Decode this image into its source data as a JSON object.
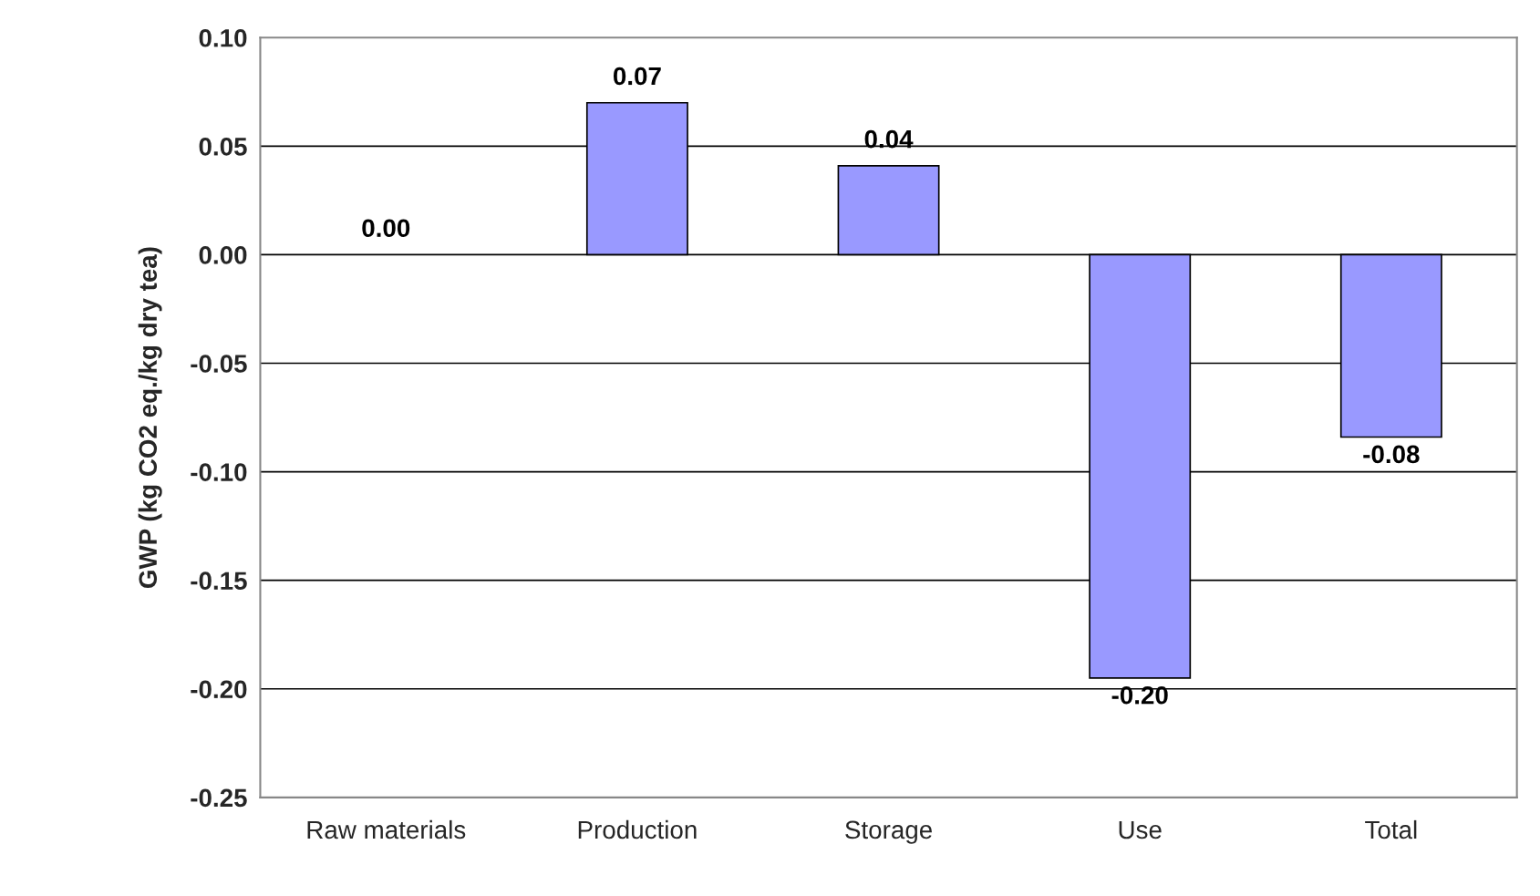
{
  "chart_data": {
    "type": "bar",
    "ylabel": "GWP (kg CO2 eq./kg dry tea)",
    "categories": [
      "Raw materials",
      "Production",
      "Storage",
      "Use",
      "Total"
    ],
    "values": [
      0.0,
      0.07,
      0.041,
      -0.195,
      -0.084
    ],
    "value_labels": [
      "0.00",
      "0.07",
      "0.04",
      "-0.20",
      "-0.08"
    ],
    "color": "#9999ff",
    "ylim": [
      -0.25,
      0.1
    ],
    "yticks": [
      {
        "value": -0.25,
        "label": "-0.25"
      },
      {
        "value": -0.2,
        "label": "-0.20"
      },
      {
        "value": -0.15,
        "label": "-0.15"
      },
      {
        "value": -0.1,
        "label": "-0.10"
      },
      {
        "value": -0.05,
        "label": "-0.05"
      },
      {
        "value": 0,
        "label": "0.00"
      },
      {
        "value": 0.05,
        "label": "0.05"
      },
      {
        "value": 0.1,
        "label": "0.10"
      }
    ],
    "grid": "y"
  }
}
